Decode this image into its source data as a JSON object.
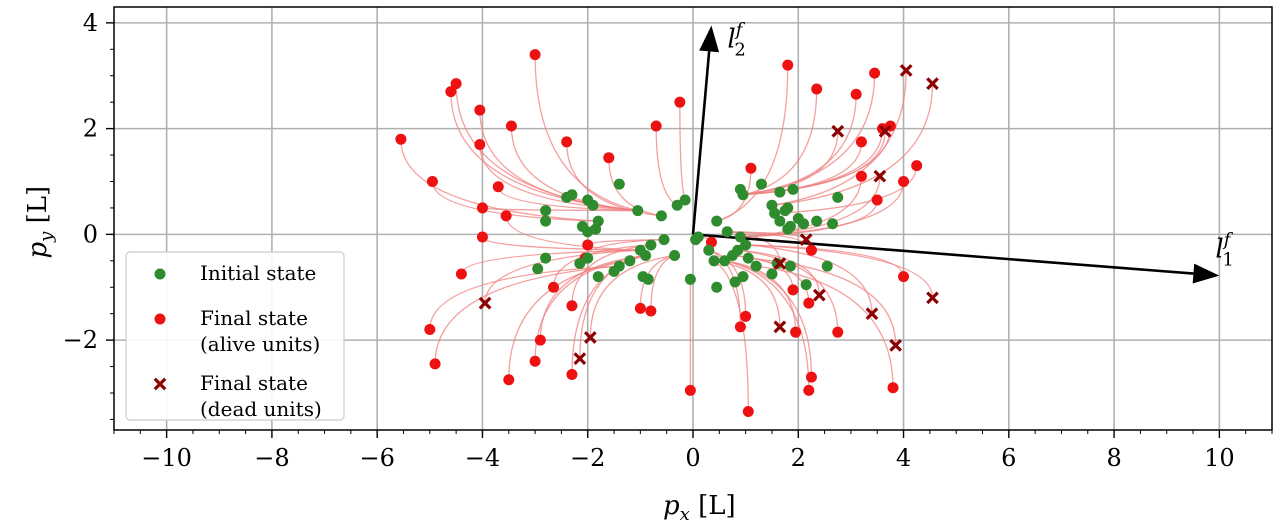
{
  "chart_data": {
    "type": "scatter",
    "title": "",
    "xlabel": "p_x [L]",
    "ylabel": "p_y [L]",
    "xlabel_parts": {
      "main": "p",
      "sub": "x",
      "unit": " [L]"
    },
    "ylabel_parts": {
      "main": "p",
      "sub": "y",
      "unit": " [L]"
    },
    "xlim": [
      -11,
      11
    ],
    "ylim": [
      -3.7,
      4.3
    ],
    "xticks": [
      -10,
      -8,
      -6,
      -4,
      -2,
      0,
      2,
      4,
      6,
      8,
      10
    ],
    "yticks": [
      -2,
      0,
      2,
      4
    ],
    "grid": true,
    "legend_position": "bottom-left",
    "colors": {
      "initial": "#2e8b2e",
      "alive": "#ee1111",
      "dead": "#8b0000",
      "trajectory": "#f08080",
      "vector": "#000000"
    },
    "legend": [
      {
        "key": "initial",
        "lines": [
          "Initial state"
        ]
      },
      {
        "key": "alive",
        "lines": [
          "Final state",
          "(alive units)"
        ]
      },
      {
        "key": "dead",
        "lines": [
          "Final state",
          "(dead units)"
        ]
      }
    ],
    "vectors": [
      {
        "name": "l_1^f",
        "main": "l",
        "sub": "1",
        "sup": "f",
        "from": [
          0,
          0
        ],
        "to": [
          10,
          -0.78
        ]
      },
      {
        "name": "l_2^f",
        "main": "l",
        "sub": "2",
        "sup": "f",
        "from": [
          0,
          0
        ],
        "to": [
          0.35,
          3.95
        ]
      }
    ],
    "series": [
      {
        "name": "Initial state",
        "key": "initial",
        "points": [
          [
            -2.8,
            0.45
          ],
          [
            -2.8,
            0.25
          ],
          [
            -2.4,
            0.7
          ],
          [
            -2.3,
            0.75
          ],
          [
            -2.0,
            0.65
          ],
          [
            -1.9,
            0.55
          ],
          [
            -2.1,
            0.15
          ],
          [
            -2.0,
            0.05
          ],
          [
            -1.8,
            0.25
          ],
          [
            -1.85,
            0.1
          ],
          [
            -1.4,
            0.95
          ],
          [
            -1.05,
            0.45
          ],
          [
            -0.6,
            0.35
          ],
          [
            -0.3,
            0.55
          ],
          [
            -0.15,
            0.65
          ],
          [
            -0.55,
            -0.1
          ],
          [
            -0.8,
            -0.2
          ],
          [
            -1.0,
            -0.3
          ],
          [
            -1.2,
            -0.5
          ],
          [
            -0.9,
            -0.4
          ],
          [
            -1.4,
            -0.6
          ],
          [
            -1.5,
            -0.7
          ],
          [
            -1.8,
            -0.8
          ],
          [
            -2.0,
            -0.45
          ],
          [
            -2.15,
            -0.55
          ],
          [
            -2.8,
            -0.45
          ],
          [
            -2.95,
            -0.65
          ],
          [
            -0.95,
            -0.8
          ],
          [
            -0.85,
            -0.85
          ],
          [
            -0.35,
            -0.4
          ],
          [
            -0.05,
            -0.85
          ],
          [
            0.1,
            -0.05
          ],
          [
            0.45,
            0.25
          ],
          [
            0.9,
            0.85
          ],
          [
            0.95,
            0.75
          ],
          [
            1.3,
            0.95
          ],
          [
            1.65,
            0.8
          ],
          [
            1.9,
            0.85
          ],
          [
            1.5,
            0.55
          ],
          [
            1.55,
            0.4
          ],
          [
            1.75,
            0.45
          ],
          [
            1.8,
            0.5
          ],
          [
            2.0,
            0.3
          ],
          [
            2.1,
            0.2
          ],
          [
            2.35,
            0.25
          ],
          [
            1.85,
            0.15
          ],
          [
            1.65,
            0.25
          ],
          [
            1.8,
            0.1
          ],
          [
            2.65,
            0.2
          ],
          [
            2.75,
            0.7
          ],
          [
            0.9,
            -0.05
          ],
          [
            0.85,
            -0.3
          ],
          [
            1.0,
            -0.2
          ],
          [
            1.05,
            -0.45
          ],
          [
            0.75,
            -0.4
          ],
          [
            0.6,
            -0.5
          ],
          [
            0.4,
            -0.5
          ],
          [
            1.2,
            -0.6
          ],
          [
            1.6,
            -0.55
          ],
          [
            1.85,
            -0.6
          ],
          [
            1.5,
            -0.75
          ],
          [
            0.95,
            -0.8
          ],
          [
            0.8,
            -0.9
          ],
          [
            0.45,
            -1.0
          ],
          [
            2.15,
            -0.95
          ],
          [
            2.55,
            -0.6
          ],
          [
            0.3,
            -0.3
          ],
          [
            0.05,
            -0.1
          ],
          [
            0.65,
            0.05
          ]
        ]
      },
      {
        "name": "Final state (alive units)",
        "key": "alive",
        "points": [
          [
            -5.55,
            1.8
          ],
          [
            -4.95,
            1.0
          ],
          [
            -4.6,
            2.7
          ],
          [
            -4.5,
            2.85
          ],
          [
            -4.05,
            2.35
          ],
          [
            -4.05,
            1.7
          ],
          [
            -4.0,
            0.5
          ],
          [
            -3.7,
            0.9
          ],
          [
            -3.55,
            0.35
          ],
          [
            -3.45,
            2.05
          ],
          [
            -3.0,
            3.4
          ],
          [
            -2.4,
            1.75
          ],
          [
            -1.6,
            1.45
          ],
          [
            -0.7,
            2.05
          ],
          [
            -0.25,
            2.5
          ],
          [
            -4.0,
            -0.05
          ],
          [
            -4.4,
            -0.75
          ],
          [
            -5.0,
            -1.8
          ],
          [
            -4.9,
            -2.45
          ],
          [
            -3.5,
            -2.75
          ],
          [
            -3.0,
            -2.4
          ],
          [
            -2.9,
            -2.0
          ],
          [
            -2.65,
            -1.0
          ],
          [
            -2.3,
            -1.35
          ],
          [
            -2.3,
            -2.65
          ],
          [
            -2.05,
            -0.45
          ],
          [
            -2.0,
            -0.2
          ],
          [
            -0.8,
            -1.45
          ],
          [
            -1.0,
            -1.4
          ],
          [
            -0.05,
            -2.95
          ],
          [
            0.35,
            -0.15
          ],
          [
            1.05,
            -3.35
          ],
          [
            0.9,
            -1.75
          ],
          [
            1.0,
            -1.55
          ],
          [
            1.8,
            3.2
          ],
          [
            2.35,
            2.75
          ],
          [
            1.1,
            1.25
          ],
          [
            3.1,
            2.65
          ],
          [
            3.45,
            3.05
          ],
          [
            3.6,
            2.0
          ],
          [
            3.75,
            2.05
          ],
          [
            3.2,
            1.75
          ],
          [
            3.2,
            1.1
          ],
          [
            3.5,
            0.65
          ],
          [
            4.0,
            1.0
          ],
          [
            4.25,
            1.3
          ],
          [
            2.25,
            -0.3
          ],
          [
            4.0,
            -0.8
          ],
          [
            2.2,
            -1.3
          ],
          [
            1.95,
            -1.85
          ],
          [
            2.25,
            -2.7
          ],
          [
            2.2,
            -2.95
          ],
          [
            2.75,
            -1.85
          ],
          [
            3.8,
            -2.9
          ],
          [
            1.9,
            -1.05
          ]
        ]
      },
      {
        "name": "Final state (dead units)",
        "key": "dead",
        "points": [
          [
            -3.95,
            -1.3
          ],
          [
            -1.95,
            -1.95
          ],
          [
            -2.15,
            -2.35
          ],
          [
            1.65,
            -1.75
          ],
          [
            1.65,
            -0.55
          ],
          [
            2.15,
            -0.1
          ],
          [
            2.4,
            -1.15
          ],
          [
            2.75,
            1.95
          ],
          [
            3.55,
            1.1
          ],
          [
            3.65,
            1.95
          ],
          [
            4.05,
            3.1
          ],
          [
            4.55,
            2.85
          ],
          [
            4.55,
            -1.2
          ],
          [
            3.4,
            -1.5
          ],
          [
            3.85,
            -2.1
          ]
        ]
      }
    ]
  }
}
